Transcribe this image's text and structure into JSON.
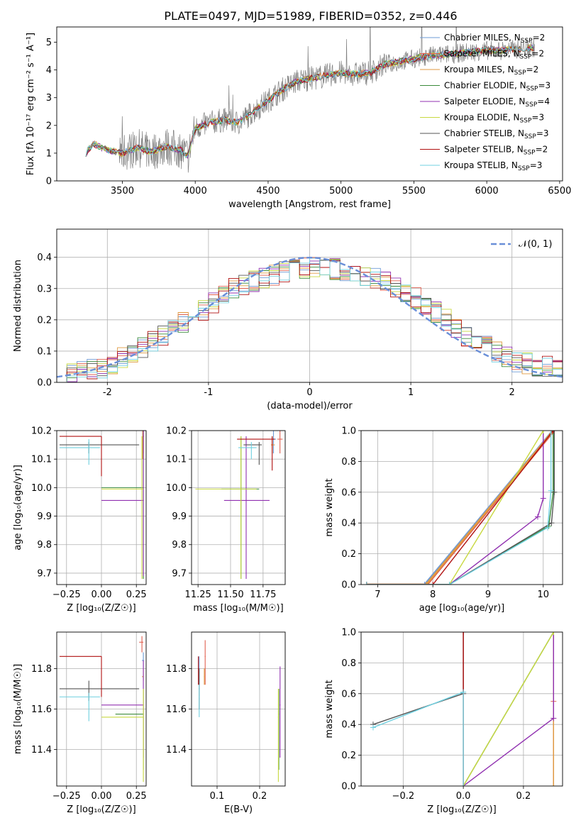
{
  "figure_title": "PLATE=0497, MJD=51989, FIBERID=0352, z=0.446",
  "model_colors": [
    "#6e9bd6",
    "#e06050",
    "#e09a40",
    "#3a8a3a",
    "#9030b0",
    "#c8d840",
    "#555555",
    "#b01010",
    "#70d0e0"
  ],
  "chart_data": [
    {
      "id": "spectrum",
      "type": "line",
      "xlabel": "wavelength [Angstrom, rest frame]",
      "ylabel": "Flux [fλ 10⁻¹⁷ erg cm⁻² s⁻¹ A⁻¹]",
      "xlim": [
        3050,
        6520
      ],
      "ylim": [
        0,
        5.55
      ],
      "xticks": [
        3500,
        4000,
        4500,
        5000,
        5500,
        6000,
        6500
      ],
      "yticks": [
        0,
        1,
        2,
        3,
        4,
        5
      ],
      "legend_position": "right",
      "observed_color": "#808080",
      "continuum_knots": [
        [
          3250,
          1.0
        ],
        [
          3300,
          1.35
        ],
        [
          3400,
          1.1
        ],
        [
          3500,
          1.0
        ],
        [
          3600,
          1.2
        ],
        [
          3700,
          1.05
        ],
        [
          3800,
          1.25
        ],
        [
          3900,
          1.1
        ],
        [
          3950,
          0.9
        ],
        [
          4000,
          1.9
        ],
        [
          4100,
          2.1
        ],
        [
          4200,
          2.2
        ],
        [
          4300,
          2.1
        ],
        [
          4400,
          2.5
        ],
        [
          4500,
          2.9
        ],
        [
          4600,
          3.3
        ],
        [
          4700,
          3.6
        ],
        [
          4800,
          3.7
        ],
        [
          4900,
          3.8
        ],
        [
          5000,
          3.9
        ],
        [
          5100,
          3.85
        ],
        [
          5200,
          3.9
        ],
        [
          5300,
          4.2
        ],
        [
          5400,
          4.3
        ],
        [
          5500,
          4.4
        ],
        [
          5600,
          4.5
        ],
        [
          5700,
          4.55
        ],
        [
          5800,
          4.6
        ],
        [
          5900,
          4.65
        ],
        [
          6000,
          4.7
        ],
        [
          6100,
          4.7
        ],
        [
          6200,
          4.75
        ],
        [
          6300,
          4.8
        ]
      ],
      "series": [
        {
          "name": "Chabrier MILES, N",
          "sub": "SSP",
          "eq": "=2"
        },
        {
          "name": "Salpeter MILES, N",
          "sub": "SSP",
          "eq": "=2"
        },
        {
          "name": "Kroupa MILES, N",
          "sub": "SSP",
          "eq": "=2"
        },
        {
          "name": "Chabrier ELODIE, N",
          "sub": "SSP",
          "eq": "=3"
        },
        {
          "name": "Salpeter ELODIE, N",
          "sub": "SSP",
          "eq": "=4"
        },
        {
          "name": "Kroupa ELODIE, N",
          "sub": "SSP",
          "eq": "=3"
        },
        {
          "name": "Chabrier STELIB, N",
          "sub": "SSP",
          "eq": "=3"
        },
        {
          "name": "Salpeter STELIB, N",
          "sub": "SSP",
          "eq": "=2"
        },
        {
          "name": "Kroupa STELIB, N",
          "sub": "SSP",
          "eq": "=3"
        }
      ]
    },
    {
      "id": "residuals",
      "type": "histogram",
      "xlabel": "(data-model)/error",
      "ylabel": "Normed distribution",
      "xlim": [
        -2.5,
        2.5
      ],
      "ylim": [
        0,
        0.49
      ],
      "xticks": [
        -2,
        -1,
        0,
        1,
        2
      ],
      "yticks": [
        0.0,
        0.1,
        0.2,
        0.3,
        0.4
      ],
      "grid": true,
      "legend_label": "𝒩(0, 1)",
      "legend_position": "top-right",
      "normal_color": "#6a8fd8",
      "bin_width": 0.1,
      "hist_envelope": [
        [
          -2.5,
          0.02
        ],
        [
          -2.0,
          0.05
        ],
        [
          -1.5,
          0.14
        ],
        [
          -1.0,
          0.24
        ],
        [
          -0.8,
          0.3
        ],
        [
          -0.5,
          0.33
        ],
        [
          -0.2,
          0.36
        ],
        [
          0.0,
          0.37
        ],
        [
          0.3,
          0.36
        ],
        [
          0.6,
          0.34
        ],
        [
          0.9,
          0.3
        ],
        [
          1.2,
          0.24
        ],
        [
          1.5,
          0.16
        ],
        [
          2.0,
          0.07
        ],
        [
          2.5,
          0.04
        ]
      ]
    },
    {
      "id": "age-vs-Z",
      "type": "error-bar",
      "xlabel": "Z [log₁₀(Z/Z☉)]",
      "ylabel": "age  [log₁₀(age/yr)]",
      "xlim": [
        -0.32,
        0.32
      ],
      "ylim": [
        9.66,
        10.2
      ],
      "xticks": [
        -0.25,
        0.0,
        0.25
      ],
      "xtick_labels": [
        "−0.25",
        "0.00",
        "0.25"
      ],
      "yticks": [
        9.7,
        9.8,
        9.9,
        10.0,
        10.1,
        10.2
      ],
      "grid": true,
      "points": [
        {
          "m": 0,
          "x": 0.295,
          "y": 10.17,
          "xe": [
            0.29,
            0.3
          ],
          "ye": [
            10.12,
            10.2
          ]
        },
        {
          "m": 1,
          "x": 0.3,
          "y": 10.18,
          "xe": [
            0.295,
            0.305
          ],
          "ye": [
            10.12,
            10.2
          ]
        },
        {
          "m": 2,
          "x": 0.295,
          "y": 10.17,
          "xe": [
            0.29,
            0.3
          ],
          "ye": [
            10.1,
            10.2
          ]
        },
        {
          "m": 3,
          "x": 0.3,
          "y": 10.0,
          "xe": [
            0.0,
            0.3
          ],
          "ye": [
            9.68,
            10.2
          ]
        },
        {
          "m": 4,
          "x": 0.3,
          "y": 9.955,
          "xe": [
            0.0,
            0.3
          ],
          "ye": [
            9.69,
            10.2
          ]
        },
        {
          "m": 5,
          "x": 0.29,
          "y": 9.995,
          "xe": [
            0.0,
            0.3
          ],
          "ye": [
            9.68,
            10.18
          ]
        },
        {
          "m": 6,
          "x": -0.09,
          "y": 10.15,
          "xe": [
            -0.3,
            0.27
          ],
          "ye": [
            10.12,
            10.16
          ]
        },
        {
          "m": 7,
          "x": 0.0,
          "y": 10.18,
          "xe": [
            -0.3,
            0.0
          ],
          "ye": [
            10.04,
            10.18
          ]
        },
        {
          "m": 8,
          "x": -0.09,
          "y": 10.14,
          "xe": [
            -0.3,
            -0.01
          ],
          "ye": [
            10.08,
            10.17
          ]
        }
      ]
    },
    {
      "id": "age-vs-mass",
      "type": "error-bar",
      "xlabel": "mass [log₁₀(M/M☉)]",
      "xlim": [
        11.2,
        11.92
      ],
      "ylim": [
        9.66,
        10.2
      ],
      "xticks": [
        11.25,
        11.5,
        11.75
      ],
      "xtick_labels": [
        "11.25",
        "11.50",
        "11.75"
      ],
      "yticks": [
        9.7,
        9.8,
        9.9,
        10.0,
        10.1,
        10.2
      ],
      "grid": true,
      "points": [
        {
          "m": 0,
          "x": 11.83,
          "y": 10.17,
          "xe": [
            11.82,
            11.85
          ],
          "ye": [
            10.12,
            10.2
          ]
        },
        {
          "m": 1,
          "x": 11.88,
          "y": 10.17,
          "xe": [
            11.86,
            11.9
          ],
          "ye": [
            10.12,
            10.2
          ]
        },
        {
          "m": 2,
          "x": 11.82,
          "y": 10.15,
          "xe": [
            11.81,
            11.84
          ],
          "ye": [
            10.12,
            10.18
          ]
        },
        {
          "m": 3,
          "x": 11.58,
          "y": 9.995,
          "xe": [
            11.43,
            11.72
          ],
          "ye": [
            9.68,
            10.18
          ]
        },
        {
          "m": 4,
          "x": 11.62,
          "y": 9.955,
          "xe": [
            11.45,
            11.8
          ],
          "ye": [
            9.68,
            10.18
          ]
        },
        {
          "m": 5,
          "x": 11.58,
          "y": 9.995,
          "xe": [
            11.23,
            11.7
          ],
          "ye": [
            9.68,
            10.18
          ]
        },
        {
          "m": 6,
          "x": 11.72,
          "y": 10.15,
          "xe": [
            11.6,
            11.74
          ],
          "ye": [
            10.08,
            10.16
          ]
        },
        {
          "m": 7,
          "x": 11.82,
          "y": 10.17,
          "xe": [
            11.55,
            11.84
          ],
          "ye": [
            10.06,
            10.18
          ]
        },
        {
          "m": 8,
          "x": 11.66,
          "y": 10.14,
          "xe": [
            11.56,
            11.7
          ],
          "ye": [
            10.1,
            10.16
          ]
        }
      ]
    },
    {
      "id": "massweight-vs-age",
      "type": "line",
      "xlabel": "age  [log₁₀(age/yr)]",
      "ylabel": "mass weight",
      "xlim": [
        6.7,
        10.35
      ],
      "ylim": [
        0,
        1.0
      ],
      "xticks": [
        7,
        8,
        9,
        10
      ],
      "yticks": [
        0.0,
        0.2,
        0.4,
        0.6,
        0.8,
        1.0
      ],
      "grid": true,
      "series": [
        {
          "m": 0,
          "x": [
            6.8,
            7.85,
            10.17,
            10.17
          ],
          "y": [
            0.0,
            0.0,
            1.0,
            1.0
          ]
        },
        {
          "m": 1,
          "x": [
            6.8,
            7.9,
            10.2,
            10.2
          ],
          "y": [
            0.0,
            0.0,
            1.0,
            1.0
          ]
        },
        {
          "m": 2,
          "x": [
            6.8,
            7.88,
            10.18,
            10.18
          ],
          "y": [
            0.0,
            0.0,
            1.0,
            1.0
          ]
        },
        {
          "m": 3,
          "x": [
            6.8,
            8.3,
            10.1,
            10.18,
            10.18
          ],
          "y": [
            0.0,
            0.0,
            0.38,
            0.6,
            1.0
          ]
        },
        {
          "m": 4,
          "x": [
            6.8,
            8.3,
            9.9,
            10.0,
            10.0
          ],
          "y": [
            0.0,
            0.0,
            0.44,
            0.56,
            1.0
          ]
        },
        {
          "m": 5,
          "x": [
            6.8,
            8.3,
            10.0,
            10.0
          ],
          "y": [
            0.0,
            0.0,
            1.0,
            1.0
          ]
        },
        {
          "m": 6,
          "x": [
            6.8,
            8.3,
            10.15,
            10.2,
            10.2
          ],
          "y": [
            0.0,
            0.0,
            0.4,
            0.6,
            1.0
          ]
        },
        {
          "m": 7,
          "x": [
            6.8,
            8.0,
            10.18,
            10.18
          ],
          "y": [
            0.0,
            0.0,
            1.0,
            1.0
          ]
        },
        {
          "m": 8,
          "x": [
            6.8,
            8.3,
            10.08,
            10.14,
            10.14
          ],
          "y": [
            0.0,
            0.0,
            0.37,
            0.61,
            1.0
          ]
        }
      ]
    },
    {
      "id": "mass-vs-Z",
      "type": "error-bar",
      "xlabel": "Z [log₁₀(Z/Z☉)]",
      "ylabel": "mass [log₁₀(M/M☉)]",
      "xlim": [
        -0.32,
        0.32
      ],
      "ylim": [
        11.22,
        11.98
      ],
      "xticks": [
        -0.25,
        0.0,
        0.25
      ],
      "xtick_labels": [
        "−0.25",
        "0.00",
        "0.25"
      ],
      "yticks": [
        11.4,
        11.6,
        11.8
      ],
      "grid": true,
      "points": [
        {
          "m": 0,
          "x": 0.3,
          "y": 11.84,
          "xe": [
            0.29,
            0.305
          ],
          "ye": [
            11.8,
            11.88
          ]
        },
        {
          "m": 1,
          "x": 0.29,
          "y": 11.93,
          "xe": [
            0.27,
            0.3
          ],
          "ye": [
            11.88,
            11.96
          ]
        },
        {
          "m": 2,
          "x": 0.3,
          "y": 11.76,
          "xe": [
            0.29,
            0.3
          ],
          "ye": [
            11.74,
            11.8
          ]
        },
        {
          "m": 3,
          "x": 0.3,
          "y": 11.575,
          "xe": [
            0.1,
            0.3
          ],
          "ye": [
            11.3,
            11.7
          ]
        },
        {
          "m": 4,
          "x": 0.3,
          "y": 11.62,
          "xe": [
            0.0,
            0.3
          ],
          "ye": [
            11.36,
            11.84
          ]
        },
        {
          "m": 5,
          "x": 0.3,
          "y": 11.56,
          "xe": [
            0.0,
            0.3
          ],
          "ye": [
            11.24,
            11.7
          ]
        },
        {
          "m": 6,
          "x": -0.09,
          "y": 11.7,
          "xe": [
            -0.3,
            0.27
          ],
          "ye": [
            11.64,
            11.74
          ]
        },
        {
          "m": 7,
          "x": 0.0,
          "y": 11.86,
          "xe": [
            -0.3,
            0.0
          ],
          "ye": [
            11.66,
            11.86
          ]
        },
        {
          "m": 8,
          "x": -0.09,
          "y": 11.66,
          "xe": [
            -0.3,
            -0.01
          ],
          "ye": [
            11.54,
            11.68
          ]
        }
      ]
    },
    {
      "id": "mass-vs-ebv",
      "type": "error-bar",
      "xlabel": "E(B-V)",
      "xlim": [
        0.04,
        0.26
      ],
      "ylim": [
        11.22,
        11.98
      ],
      "xticks": [
        0.1,
        0.2
      ],
      "xtick_labels": [
        "0.1",
        "0.2"
      ],
      "yticks": [
        11.4,
        11.6,
        11.8
      ],
      "grid": true,
      "points": [
        {
          "m": 0,
          "x": 0.058,
          "y": 11.8,
          "xe": [
            0.057,
            0.059
          ],
          "ye": [
            11.72,
            11.86
          ]
        },
        {
          "m": 1,
          "x": 0.072,
          "y": 11.86,
          "xe": [
            0.071,
            0.073
          ],
          "ye": [
            11.72,
            11.94
          ]
        },
        {
          "m": 2,
          "x": 0.07,
          "y": 11.76,
          "xe": [
            0.069,
            0.071
          ],
          "ye": [
            11.72,
            11.8
          ]
        },
        {
          "m": 3,
          "x": 0.245,
          "y": 11.575,
          "xe": [
            0.244,
            0.246
          ],
          "ye": [
            11.3,
            11.7
          ]
        },
        {
          "m": 4,
          "x": 0.248,
          "y": 11.62,
          "xe": [
            0.247,
            0.249
          ],
          "ye": [
            11.36,
            11.81
          ]
        },
        {
          "m": 5,
          "x": 0.244,
          "y": 11.56,
          "xe": [
            0.243,
            0.245
          ],
          "ye": [
            11.24,
            11.7
          ]
        },
        {
          "m": 6,
          "x": 0.058,
          "y": 11.7,
          "xe": [
            0.057,
            0.059
          ],
          "ye": [
            11.6,
            11.8
          ]
        },
        {
          "m": 7,
          "x": 0.056,
          "y": 11.8,
          "xe": [
            0.055,
            0.057
          ],
          "ye": [
            11.72,
            11.86
          ]
        },
        {
          "m": 8,
          "x": 0.058,
          "y": 11.66,
          "xe": [
            0.057,
            0.059
          ],
          "ye": [
            11.56,
            11.72
          ]
        }
      ]
    },
    {
      "id": "massweight-vs-Z",
      "type": "line",
      "xlabel": "Z [log₁₀(Z/Z☉)]",
      "ylabel": "mass weight",
      "xlim": [
        -0.34,
        0.33
      ],
      "ylim": [
        0,
        1.0
      ],
      "xticks": [
        -0.2,
        0.0,
        0.2
      ],
      "xtick_labels": [
        "−0.2",
        "0.0",
        "0.2"
      ],
      "yticks": [
        0.0,
        0.2,
        0.4,
        0.6,
        0.8,
        1.0
      ],
      "grid": true,
      "series": [
        {
          "m": 0,
          "x": [
            0.3,
            0.3,
            0.3
          ],
          "y": [
            0.0,
            1.0,
            1.0
          ]
        },
        {
          "m": 1,
          "x": [
            0.3,
            0.3,
            0.3
          ],
          "y": [
            0.0,
            0.55,
            1.0
          ]
        },
        {
          "m": 2,
          "x": [
            0.3,
            0.3,
            0.3
          ],
          "y": [
            0.0,
            0.44,
            1.0
          ]
        },
        {
          "m": 3,
          "x": [
            0.0,
            0.3,
            0.3
          ],
          "y": [
            0.0,
            1.0,
            1.0
          ]
        },
        {
          "m": 4,
          "x": [
            0.0,
            0.3,
            0.3
          ],
          "y": [
            0.0,
            0.44,
            1.0
          ]
        },
        {
          "m": 5,
          "x": [
            0.0,
            0.3,
            0.3
          ],
          "y": [
            0.0,
            1.0,
            1.0
          ]
        },
        {
          "m": 6,
          "x": [
            -0.3,
            0.0,
            0.0
          ],
          "y": [
            0.4,
            0.6,
            1.0
          ]
        },
        {
          "m": 7,
          "x": [
            0.0,
            0.0,
            0.0
          ],
          "y": [
            0.0,
            1.0,
            1.0
          ]
        },
        {
          "m": 8,
          "x": [
            -0.3,
            0.0,
            0.0
          ],
          "y": [
            0.38,
            0.61,
            0.0
          ]
        }
      ]
    }
  ]
}
